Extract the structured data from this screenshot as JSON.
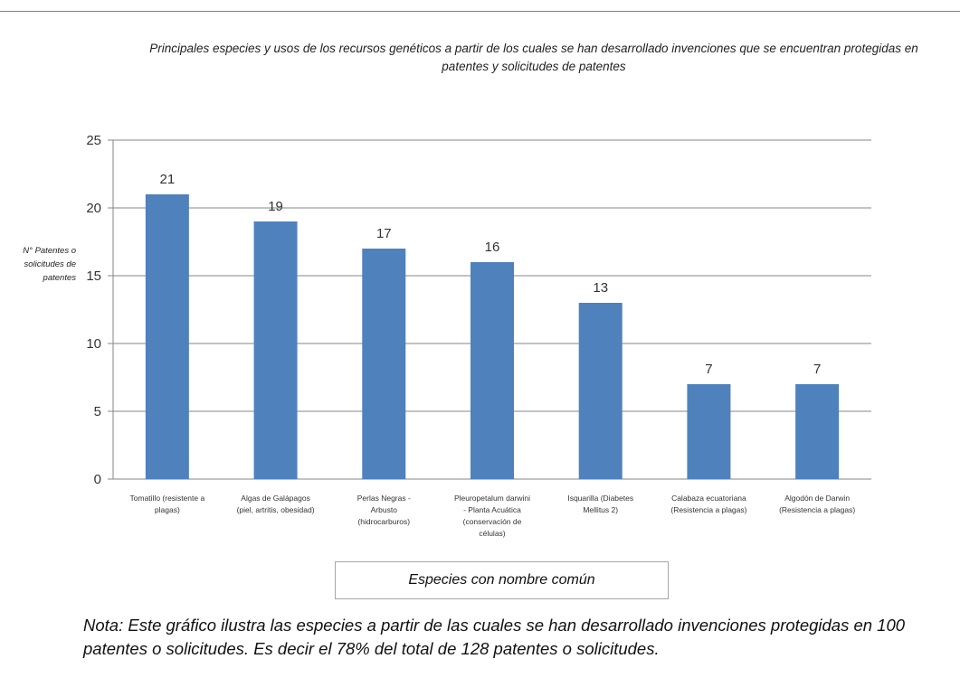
{
  "chart_data": {
    "type": "bar",
    "title": "Principales especies y usos de los recursos genéticos a partir de los cuales se han desarrollado invenciones que se encuentran protegidas en patentes y solicitudes de patentes",
    "ylabel": "N° Patentes o solicitudes de patentes",
    "xlabel": "Especies con nombre común",
    "categories": [
      "Tomatillo (resistente a plagas)",
      "Algas de Galápagos (piel, artritis, obesidad)",
      "Perlas Negras - Arbusto (hidrocarburos)",
      "Pleuropetalum darwini - Planta Acuática (conservación de células)",
      "Isquarilla (Diabetes Mellitus 2)",
      "Calabaza ecuatoriana (Resistencia a plagas)",
      "Algodón de Darwin (Resistencia a plagas)"
    ],
    "category_lines": [
      [
        "Tomatillo (resistente a",
        "plagas)"
      ],
      [
        "Algas de Galápagos",
        "(piel, artritis, obesidad)"
      ],
      [
        "Perlas Negras -",
        "Arbusto",
        "(hidrocarburos)"
      ],
      [
        "Pleuropetalum darwini",
        "- Planta Acuática",
        "(conservación de",
        "células)"
      ],
      [
        "Isquarilla (Diabetes",
        "Mellitus 2)"
      ],
      [
        "Calabaza ecuatoriana",
        "(Resistencia a plagas)"
      ],
      [
        "Algodón de Darwin",
        "(Resistencia a plagas)"
      ]
    ],
    "values": [
      21,
      19,
      17,
      16,
      13,
      7,
      7
    ],
    "ylim": [
      0,
      25
    ],
    "yticks": [
      0,
      5,
      10,
      15,
      20,
      25
    ],
    "grid": true,
    "legend": "none",
    "bar_color": "#4f81bd",
    "grid_color": "#868686"
  },
  "note": "Nota: Este gráfico ilustra las especies a partir de las cuales se han desarrollado invenciones protegidas en 100 patentes o solicitudes. Es decir el 78% del total de 128 patentes o solicitudes."
}
